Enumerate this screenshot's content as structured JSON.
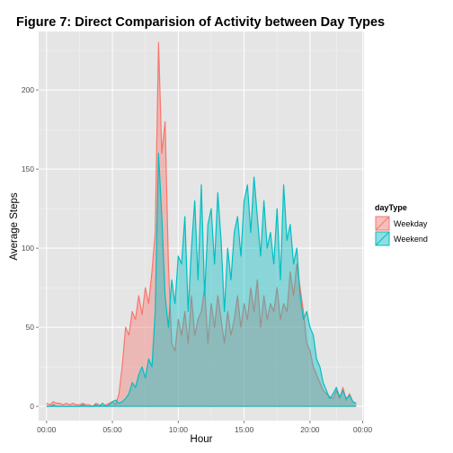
{
  "chart_data": {
    "type": "area",
    "title": "Figure 7: Direct Comparision of Activity between Day Types",
    "xlabel": "Hour",
    "ylabel": "Average Steps",
    "xlim": [
      -0.6,
      24.1
    ],
    "ylim": [
      -9,
      237
    ],
    "x_ticks": [
      0,
      5,
      10,
      15,
      20,
      24
    ],
    "x_tick_labels": [
      "00:00",
      "05:00",
      "10:00",
      "15:00",
      "20:00",
      "00:00"
    ],
    "y_ticks": [
      0,
      50,
      100,
      150,
      200
    ],
    "y_tick_labels": [
      "0",
      "50",
      "100",
      "150",
      "200"
    ],
    "grid": true,
    "legend": {
      "title": "dayType",
      "position": "right"
    },
    "x": [
      0,
      0.25,
      0.5,
      0.75,
      1,
      1.25,
      1.5,
      1.75,
      2,
      2.25,
      2.5,
      2.75,
      3,
      3.25,
      3.5,
      3.75,
      4,
      4.25,
      4.5,
      4.75,
      5,
      5.25,
      5.5,
      5.75,
      6,
      6.25,
      6.5,
      6.75,
      7,
      7.25,
      7.5,
      7.75,
      8,
      8.25,
      8.5,
      8.75,
      9,
      9.25,
      9.5,
      9.75,
      10,
      10.25,
      10.5,
      10.75,
      11,
      11.25,
      11.5,
      11.75,
      12,
      12.25,
      12.5,
      12.75,
      13,
      13.25,
      13.5,
      13.75,
      14,
      14.25,
      14.5,
      14.75,
      15,
      15.25,
      15.5,
      15.75,
      16,
      16.25,
      16.5,
      16.75,
      17,
      17.25,
      17.5,
      17.75,
      18,
      18.25,
      18.5,
      18.75,
      19,
      19.25,
      19.5,
      19.75,
      20,
      20.25,
      20.5,
      20.75,
      21,
      21.25,
      21.5,
      21.75,
      22,
      22.25,
      22.5,
      22.75,
      23,
      23.25,
      23.5
    ],
    "series": [
      {
        "name": "Weekday",
        "color": "#F8766D",
        "values": [
          2,
          1,
          3,
          2,
          2,
          1,
          2,
          1,
          2,
          1,
          1,
          2,
          1,
          1,
          0,
          2,
          1,
          0,
          1,
          2,
          3,
          1,
          8,
          26,
          50,
          45,
          60,
          55,
          70,
          58,
          75,
          65,
          85,
          110,
          230,
          160,
          180,
          90,
          40,
          35,
          55,
          45,
          60,
          40,
          70,
          45,
          55,
          60,
          75,
          40,
          65,
          50,
          70,
          55,
          40,
          60,
          45,
          55,
          70,
          50,
          65,
          55,
          75,
          60,
          80,
          50,
          70,
          55,
          65,
          60,
          75,
          55,
          65,
          60,
          85,
          70,
          90,
          75,
          60,
          40,
          35,
          25,
          20,
          15,
          10,
          8,
          6,
          5,
          10,
          5,
          12,
          4,
          8,
          3,
          2
        ]
      },
      {
        "name": "Weekend",
        "color": "#00BFC4",
        "values": [
          0,
          0,
          1,
          0,
          0,
          0,
          0,
          0,
          0,
          0,
          0,
          1,
          0,
          0,
          0,
          1,
          0,
          2,
          0,
          1,
          3,
          4,
          2,
          3,
          5,
          8,
          15,
          12,
          20,
          25,
          18,
          30,
          25,
          60,
          160,
          120,
          70,
          50,
          80,
          65,
          95,
          90,
          120,
          60,
          100,
          130,
          80,
          140,
          70,
          115,
          125,
          90,
          135,
          105,
          60,
          100,
          80,
          110,
          120,
          95,
          130,
          140,
          110,
          145,
          120,
          95,
          130,
          100,
          110,
          90,
          125,
          80,
          140,
          105,
          115,
          90,
          100,
          70,
          55,
          60,
          50,
          45,
          30,
          25,
          15,
          10,
          5,
          8,
          12,
          6,
          10,
          5,
          7,
          3,
          2
        ]
      }
    ]
  }
}
